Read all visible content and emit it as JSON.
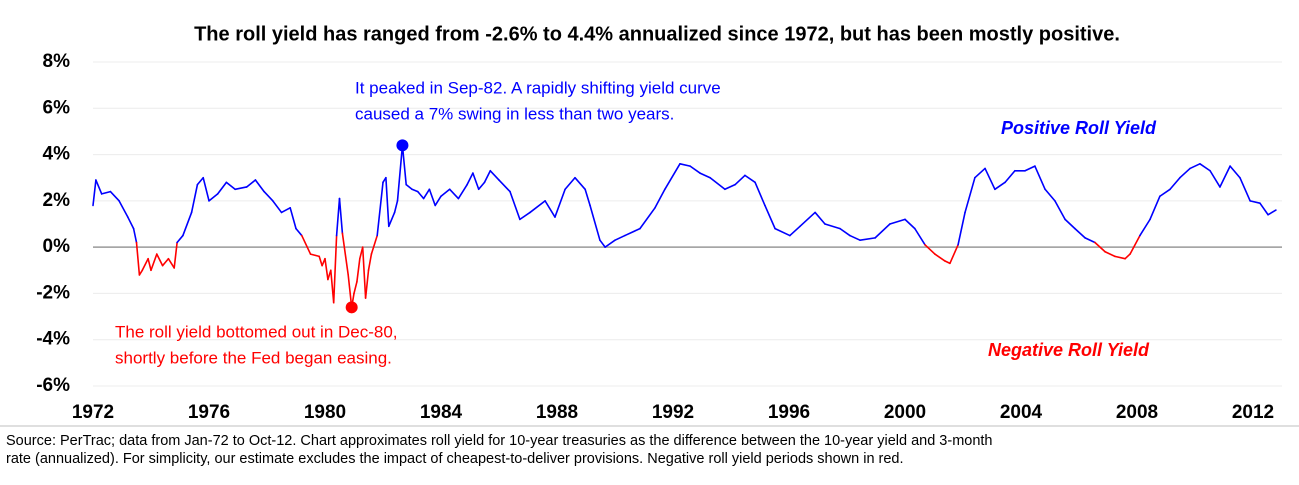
{
  "chart_data": {
    "type": "line",
    "title": "The roll yield has ranged from -2.6% to 4.4% annualized since 1972, but has been mostly positive.",
    "positive_color": "#0000ff",
    "negative_color": "#ff0000",
    "grid": true,
    "xlim": [
      1972,
      2013
    ],
    "xticks": [
      1972,
      1976,
      1980,
      1984,
      1988,
      1992,
      1996,
      2000,
      2004,
      2008,
      2012
    ],
    "ylim": [
      -6,
      8
    ],
    "yticks": [
      {
        "value": -6,
        "label": "-6%"
      },
      {
        "value": -4,
        "label": "-4%"
      },
      {
        "value": -2,
        "label": "-2%"
      },
      {
        "value": 0,
        "label": "0%"
      },
      {
        "value": 2,
        "label": "2%"
      },
      {
        "value": 4,
        "label": "4%"
      },
      {
        "value": 6,
        "label": "6%"
      },
      {
        "value": 8,
        "label": "8%"
      }
    ],
    "x": [
      1972.0,
      1972.1,
      1972.3,
      1972.6,
      1972.9,
      1973.2,
      1973.4,
      1973.5,
      1973.6,
      1973.7,
      1973.9,
      1974.0,
      1974.2,
      1974.4,
      1974.6,
      1974.8,
      1974.9,
      1975.1,
      1975.4,
      1975.6,
      1975.8,
      1976.0,
      1976.3,
      1976.6,
      1976.9,
      1977.3,
      1977.6,
      1977.9,
      1978.2,
      1978.5,
      1978.8,
      1979.0,
      1979.2,
      1979.5,
      1979.8,
      1979.9,
      1980.0,
      1980.1,
      1980.2,
      1980.3,
      1980.4,
      1980.5,
      1980.6,
      1980.8,
      1980.92,
      1981.0,
      1981.1,
      1981.2,
      1981.3,
      1981.4,
      1981.5,
      1981.6,
      1981.8,
      1982.0,
      1982.1,
      1982.2,
      1982.4,
      1982.5,
      1982.67,
      1982.8,
      1983.0,
      1983.2,
      1983.4,
      1983.6,
      1983.8,
      1984.0,
      1984.3,
      1984.6,
      1984.9,
      1985.1,
      1985.3,
      1985.5,
      1985.7,
      1986.0,
      1986.38,
      1986.72,
      1987.07,
      1987.59,
      1987.93,
      1988.28,
      1988.62,
      1988.97,
      1989.14,
      1989.48,
      1989.66,
      1990.0,
      1990.34,
      1990.86,
      1991.38,
      1991.72,
      1992.24,
      1992.59,
      1992.93,
      1993.28,
      1993.79,
      1994.14,
      1994.48,
      1994.83,
      1995.17,
      1995.52,
      1996.03,
      1996.38,
      1996.9,
      1997.24,
      1997.76,
      1998.1,
      1998.45,
      1998.97,
      1999.48,
      2000.0,
      2000.34,
      2000.69,
      2001.03,
      2001.38,
      2001.55,
      2001.83,
      2002.07,
      2002.41,
      2002.76,
      2003.1,
      2003.45,
      2003.79,
      2004.14,
      2004.48,
      2004.83,
      2005.17,
      2005.52,
      2005.86,
      2006.21,
      2006.55,
      2006.9,
      2007.24,
      2007.59,
      2007.76,
      2008.1,
      2008.45,
      2008.79,
      2009.14,
      2009.48,
      2009.83,
      2010.17,
      2010.52,
      2010.86,
      2011.21,
      2011.55,
      2011.9,
      2012.24,
      2012.52,
      2012.79
    ],
    "series": [
      {
        "name": "Roll yield",
        "values": [
          1.8,
          2.9,
          2.3,
          2.4,
          2.0,
          1.3,
          0.8,
          0.2,
          -1.2,
          -1.0,
          -0.5,
          -1.0,
          -0.3,
          -0.8,
          -0.5,
          -0.9,
          0.2,
          0.5,
          1.5,
          2.7,
          3.0,
          2.0,
          2.3,
          2.8,
          2.5,
          2.6,
          2.9,
          2.4,
          2.0,
          1.5,
          1.7,
          0.8,
          0.5,
          -0.3,
          -0.4,
          -0.8,
          -0.5,
          -1.4,
          -1.0,
          -2.4,
          0.5,
          2.1,
          0.6,
          -1.2,
          -2.6,
          -2.0,
          -1.5,
          -0.5,
          0.0,
          -2.2,
          -1.0,
          -0.3,
          0.5,
          2.8,
          3.0,
          0.9,
          1.5,
          2.0,
          4.4,
          2.7,
          2.5,
          2.4,
          2.1,
          2.5,
          1.8,
          2.2,
          2.5,
          2.1,
          2.7,
          3.2,
          2.5,
          2.8,
          3.3,
          2.9,
          2.4,
          1.2,
          1.5,
          2.0,
          1.3,
          2.5,
          3.0,
          2.5,
          1.8,
          0.3,
          0.0,
          0.3,
          0.5,
          0.8,
          1.7,
          2.5,
          3.6,
          3.5,
          3.2,
          3.0,
          2.5,
          2.7,
          3.1,
          2.8,
          1.8,
          0.8,
          0.5,
          0.9,
          1.5,
          1.0,
          0.8,
          0.5,
          0.3,
          0.4,
          1.0,
          1.2,
          0.8,
          0.1,
          -0.3,
          -0.6,
          -0.7,
          0.1,
          1.5,
          3.0,
          3.4,
          2.5,
          2.8,
          3.3,
          3.3,
          3.5,
          2.5,
          2.0,
          1.2,
          0.8,
          0.4,
          0.2,
          -0.2,
          -0.4,
          -0.5,
          -0.3,
          0.5,
          1.2,
          2.2,
          2.5,
          3.0,
          3.4,
          3.6,
          3.3,
          2.6,
          3.5,
          3.0,
          2.0,
          1.9,
          1.4,
          1.6
        ]
      }
    ],
    "annotations": [
      {
        "x": 1982.67,
        "y": 4.4,
        "color": "#0000ff",
        "lines": [
          "It peaked in Sep-82. A rapidly shifting yield curve",
          "caused a 7% swing in less than two years."
        ]
      },
      {
        "x": 1980.92,
        "y": -2.6,
        "color": "#ff0000",
        "lines": [
          "The roll yield bottomed out in Dec-80,",
          "shortly before the Fed began easing."
        ]
      }
    ],
    "region_labels": [
      {
        "text": "Positive Roll Yield",
        "color": "#0000ff"
      },
      {
        "text": "Negative Roll Yield",
        "color": "#ff0000"
      }
    ],
    "source": [
      "Source: PerTrac; data from Jan-72 to Oct-12. Chart approximates roll yield for 10-year treasuries as the difference between the 10-year yield and 3-month",
      "rate (annualized). For simplicity, our estimate excludes the impact of cheapest-to-deliver provisions. Negative roll yield periods shown in red."
    ]
  }
}
